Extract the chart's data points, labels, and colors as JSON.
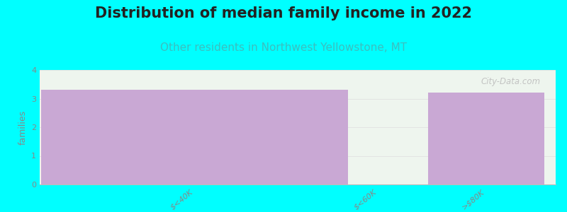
{
  "title": "Distribution of median family income in 2022",
  "subtitle": "Other residents in Northwest Yellowstone, MT",
  "categories": [
    "$<40K",
    "$<60K",
    ">$80K"
  ],
  "values": [
    3.3,
    0.0,
    3.2
  ],
  "bar_color": "#c9a8d4",
  "zero_bar_color": "#e8f0e0",
  "plot_bg_color": "#eef5ee",
  "background_color": "#00ffff",
  "ylabel": "families",
  "ylim": [
    0,
    4
  ],
  "yticks": [
    0,
    1,
    2,
    3,
    4
  ],
  "title_fontsize": 15,
  "subtitle_fontsize": 11,
  "subtitle_color": "#3bbfbf",
  "title_color": "#222222",
  "watermark": "City-Data.com",
  "tick_label_color": "#888888",
  "grid_color": "#dddddd",
  "spine_color": "#bbbbbb"
}
